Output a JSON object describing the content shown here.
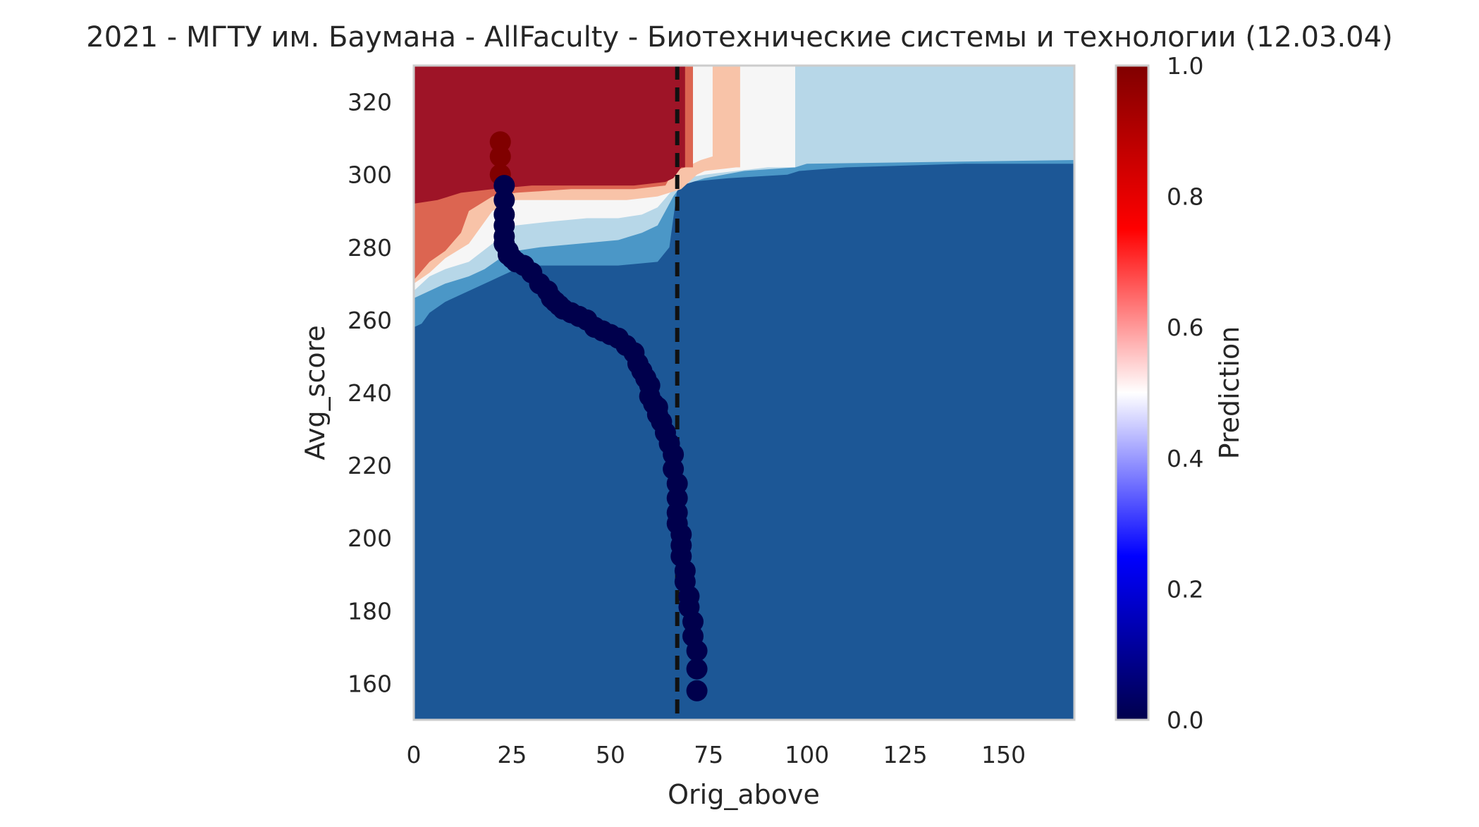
{
  "chart_data": {
    "type": "heatmap",
    "title": "2021 - МГТУ им. Баумана - AllFaculty - Биотехнические системы и технологии (12.03.04)",
    "xlabel": "Orig_above",
    "ylabel": "Avg_score",
    "xlim": [
      0,
      168
    ],
    "ylim": [
      150,
      330
    ],
    "xticks": [
      0,
      25,
      50,
      75,
      100,
      125,
      150
    ],
    "yticks": [
      160,
      180,
      200,
      220,
      240,
      260,
      280,
      300,
      320
    ],
    "grid": false,
    "colormap": "seismic",
    "colorbar": {
      "label": "Prediction",
      "range": [
        0,
        1
      ],
      "ticks": [
        "0.0",
        "0.2",
        "0.4",
        "0.6",
        "0.8",
        "1.0"
      ],
      "colors": [
        "#00004c",
        "#0000ff",
        "#ffffff",
        "#ff0000",
        "#800000"
      ]
    },
    "contour_levels": [
      {
        "range": "0.9-1.0",
        "color": "#9e1427"
      },
      {
        "range": "0.7-0.8",
        "color": "#dc6551"
      },
      {
        "range": "0.6-0.7",
        "color": "#f8c3a8"
      },
      {
        "range": "0.5-0.6",
        "color": "#f6f6f6"
      },
      {
        "range": "0.4-0.5",
        "color": "#b7d7e8"
      },
      {
        "range": "0.2-0.3",
        "color": "#4b97c7"
      },
      {
        "range": "0.0-0.1",
        "color": "#1c5796"
      }
    ],
    "vline": {
      "x": 67,
      "style": "dashed",
      "color": "#111111"
    },
    "series": [
      {
        "type": "scatter",
        "x": [
          22,
          22,
          22,
          23,
          23,
          23,
          23,
          23,
          23,
          24,
          24,
          25,
          26,
          28,
          30,
          32,
          34,
          35,
          36,
          37,
          38,
          40,
          42,
          44,
          46,
          48,
          50,
          52,
          54,
          56,
          57,
          58,
          59,
          60,
          60,
          61,
          62,
          62,
          63,
          64,
          65,
          66,
          66,
          67,
          67,
          67,
          67,
          68,
          68,
          68,
          69,
          69,
          70,
          70,
          71,
          71,
          72,
          72,
          72
        ],
        "y": [
          309,
          305,
          300,
          297,
          293,
          289,
          286,
          283,
          281,
          279,
          278,
          277,
          276,
          275,
          273,
          270,
          268,
          266,
          265,
          264,
          263,
          262,
          261,
          260,
          258,
          257,
          256,
          255,
          253,
          251,
          248,
          246,
          244,
          242,
          239,
          237,
          236,
          234,
          232,
          229,
          226,
          223,
          219,
          215,
          211,
          207,
          204,
          201,
          198,
          195,
          191,
          188,
          184,
          181,
          177,
          173,
          169,
          164,
          158
        ],
        "point_colors_by_prediction": [
          1,
          1,
          1,
          0,
          0,
          0,
          0,
          0,
          0,
          0,
          0,
          0,
          0,
          0,
          0,
          0,
          0,
          0,
          0,
          0,
          0,
          0,
          0,
          0,
          0,
          0,
          0,
          0,
          0,
          0,
          0,
          0,
          0,
          0,
          0,
          0,
          0,
          0,
          0,
          0,
          0,
          0,
          0,
          0,
          0,
          0,
          0,
          0,
          0,
          0,
          0,
          0,
          0,
          0,
          0,
          0,
          0,
          0,
          0
        ]
      }
    ]
  }
}
